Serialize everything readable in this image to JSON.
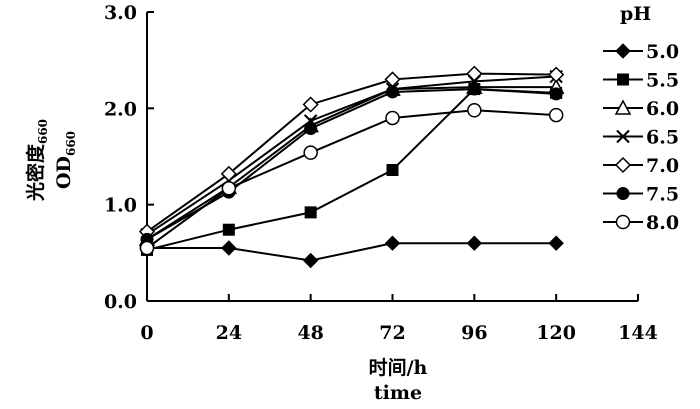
{
  "chart_data": {
    "type": "line",
    "xlabel": "时间/h",
    "xlabel_en": "time",
    "ylabel": "光密度",
    "ylabel_sub": "660",
    "ylabel_en": "OD",
    "ylabel_en_sub": "660",
    "xlim": [
      0,
      144
    ],
    "ylim": [
      0.0,
      3.0
    ],
    "x_ticks": [
      "0",
      "24",
      "48",
      "72",
      "96",
      "120",
      "144"
    ],
    "y_ticks": [
      "0.0",
      "1.0",
      "2.0",
      "3.0"
    ],
    "x": [
      0,
      24,
      48,
      72,
      96,
      120
    ],
    "grid": false,
    "legend_title": "pH",
    "legend_position": "right",
    "series": [
      {
        "name": "5.0",
        "marker": "diamond-filled",
        "values": [
          0.55,
          0.55,
          0.42,
          0.6,
          0.6,
          0.6
        ]
      },
      {
        "name": "5.5",
        "marker": "square-filled",
        "values": [
          0.53,
          0.74,
          0.92,
          1.36,
          2.2,
          2.16
        ]
      },
      {
        "name": "6.0",
        "marker": "triangle-open",
        "values": [
          0.64,
          1.18,
          1.82,
          2.2,
          2.22,
          2.22
        ]
      },
      {
        "name": "6.5",
        "marker": "x",
        "values": [
          0.69,
          1.25,
          1.87,
          2.2,
          2.28,
          2.33
        ]
      },
      {
        "name": "7.0",
        "marker": "diamond-open",
        "values": [
          0.72,
          1.32,
          2.04,
          2.3,
          2.36,
          2.35
        ]
      },
      {
        "name": "7.5",
        "marker": "circle-filled",
        "values": [
          0.64,
          1.13,
          1.79,
          2.17,
          2.2,
          2.15
        ]
      },
      {
        "name": "8.0",
        "marker": "circle-open",
        "values": [
          0.55,
          1.17,
          1.54,
          1.9,
          1.98,
          1.93
        ]
      }
    ]
  }
}
